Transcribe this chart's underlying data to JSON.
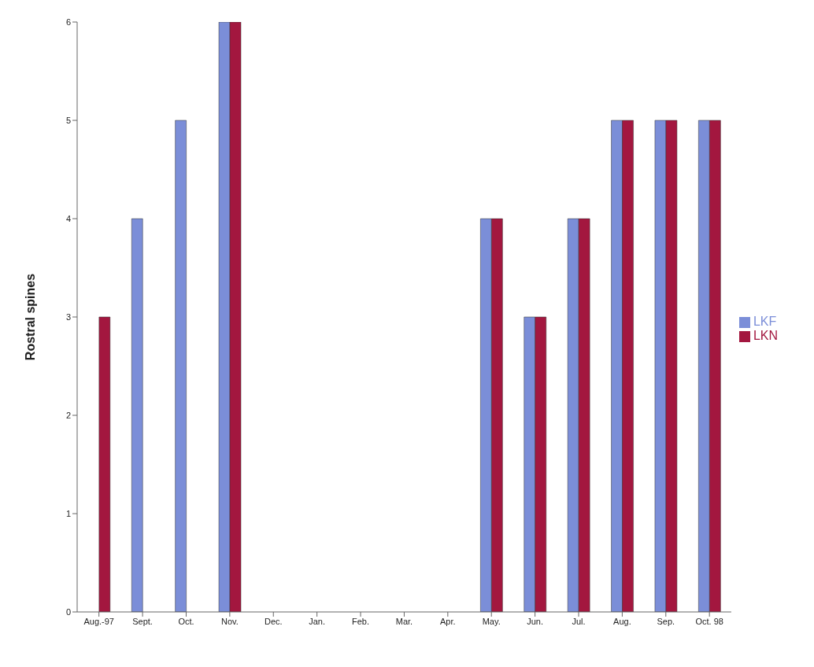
{
  "chart_data": {
    "type": "bar",
    "ylabel": "Rostral spines",
    "categories": [
      "Aug.-97",
      "Sept.",
      "Oct.",
      "Nov.",
      "Dec.",
      "Jan.",
      "Feb.",
      "Mar.",
      "Apr.",
      "May.",
      "Jun.",
      "Jul.",
      "Aug.",
      "Sep.",
      "Oct. 98"
    ],
    "series": [
      {
        "name": "LKF",
        "color": "#7b8ed8",
        "values": [
          null,
          4,
          5,
          6,
          null,
          null,
          null,
          null,
          null,
          4,
          3,
          4,
          5,
          5,
          5
        ]
      },
      {
        "name": "LKN",
        "color": "#a3173f",
        "values": [
          3,
          0,
          null,
          6,
          null,
          null,
          null,
          null,
          null,
          4,
          3,
          4,
          5,
          5,
          5
        ]
      }
    ],
    "ylim": [
      0,
      6
    ],
    "yticks": [
      0,
      1,
      2,
      3,
      4,
      5,
      6
    ],
    "grid": false,
    "legend": "right"
  }
}
